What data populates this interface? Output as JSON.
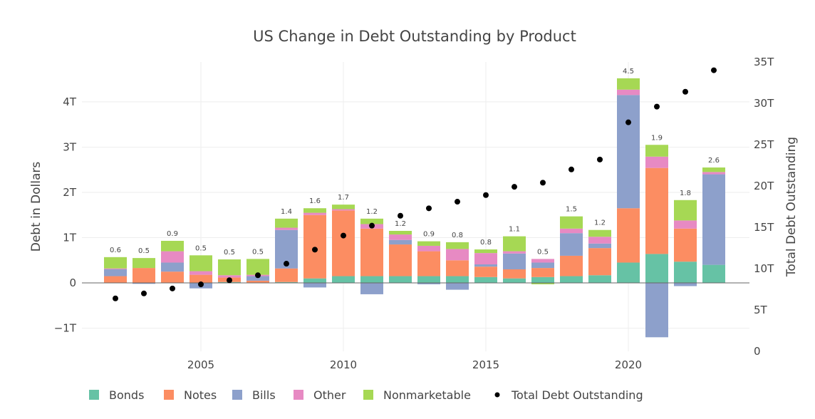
{
  "chart_data": {
    "type": "bar",
    "barmode": "relative-stacked",
    "title": "US Change in Debt Outstanding by Product",
    "ylabel": "Debt in Dollars",
    "y2label": "Total Debt Outstanding",
    "xlabel": "",
    "x": [
      2002,
      2003,
      2004,
      2005,
      2006,
      2007,
      2008,
      2009,
      2010,
      2011,
      2012,
      2013,
      2014,
      2015,
      2016,
      2017,
      2018,
      2019,
      2020,
      2021,
      2022,
      2023
    ],
    "xticks": [
      2005,
      2010,
      2015,
      2020
    ],
    "xtick_labels": [
      "2005",
      "2010",
      "2015",
      "2020"
    ],
    "ylim": [
      -1.51,
      4.88
    ],
    "yticks": [
      -1,
      0,
      1,
      2,
      3,
      4
    ],
    "ytick_labels": [
      "−1T",
      "0",
      "1T",
      "2T",
      "3T",
      "4T"
    ],
    "y2lim": [
      0,
      35
    ],
    "y2ticks": [
      0,
      5,
      10,
      15,
      20,
      25,
      30,
      35
    ],
    "y2tick_labels": [
      "0",
      "5T",
      "10T",
      "15T",
      "20T",
      "25T",
      "30T",
      "35T"
    ],
    "grid": true,
    "legend_position": "bottom",
    "series": [
      {
        "name": "Bonds",
        "color": "#66c2a5",
        "axis": "y",
        "values": [
          0,
          0,
          0,
          0,
          0.02,
          0,
          0.02,
          0.1,
          0.15,
          0.15,
          0.15,
          0.15,
          0.15,
          0.13,
          0.1,
          0.13,
          0.15,
          0.17,
          0.45,
          0.64,
          0.47,
          0.4
        ]
      },
      {
        "name": "Notes",
        "color": "#fc8d62",
        "axis": "y",
        "values": [
          0.15,
          0.33,
          0.25,
          0.18,
          0.1,
          0.05,
          0.3,
          1.4,
          1.45,
          1.05,
          0.7,
          0.55,
          0.35,
          0.23,
          0.2,
          0.2,
          0.45,
          0.6,
          1.2,
          1.9,
          0.73,
          0
        ]
      },
      {
        "name": "Bills",
        "color": "#8da0cb",
        "axis": "y",
        "values": [
          0.15,
          -0.02,
          0.2,
          -0.12,
          0,
          0.1,
          0.85,
          -0.1,
          0,
          -0.25,
          0.1,
          -0.03,
          -0.15,
          0.05,
          0.35,
          0.12,
          0.5,
          0.1,
          2.5,
          -1.2,
          -0.07,
          2.0
        ]
      },
      {
        "name": "Other",
        "color": "#e78ac3",
        "axis": "y",
        "values": [
          0.02,
          0,
          0.25,
          0.08,
          0.05,
          0.03,
          0.05,
          0.05,
          0.03,
          0.1,
          0.12,
          0.12,
          0.25,
          0.25,
          0.05,
          0.08,
          0.1,
          0.15,
          0.12,
          0.25,
          0.18,
          0.05
        ]
      },
      {
        "name": "Nonmarketable",
        "color": "#a6d854",
        "axis": "y",
        "values": [
          0.25,
          0.22,
          0.23,
          0.35,
          0.35,
          0.35,
          0.2,
          0.1,
          0.1,
          0.12,
          0.08,
          0.1,
          0.15,
          0.08,
          0.33,
          -0.03,
          0.27,
          0.15,
          0.25,
          0.26,
          0.45,
          0.1
        ]
      },
      {
        "name": "Total Debt Outstanding",
        "type": "scatter",
        "color": "#000000",
        "axis": "y2",
        "values": [
          6.4,
          7.0,
          7.6,
          8.1,
          8.6,
          9.2,
          10.6,
          12.3,
          14.0,
          15.2,
          16.4,
          17.3,
          18.1,
          18.9,
          19.9,
          20.4,
          22.0,
          23.2,
          27.7,
          29.6,
          31.4,
          34.0
        ]
      }
    ],
    "data_labels": [
      "0.6",
      "0.5",
      "0.9",
      "0.5",
      "0.5",
      "0.5",
      "1.4",
      "1.6",
      "1.7",
      "1.2",
      "1.2",
      "0.9",
      "0.8",
      "0.8",
      "1.1",
      "0.5",
      "1.5",
      "1.2",
      "4.5",
      "1.9",
      "1.8",
      "2.6"
    ]
  }
}
